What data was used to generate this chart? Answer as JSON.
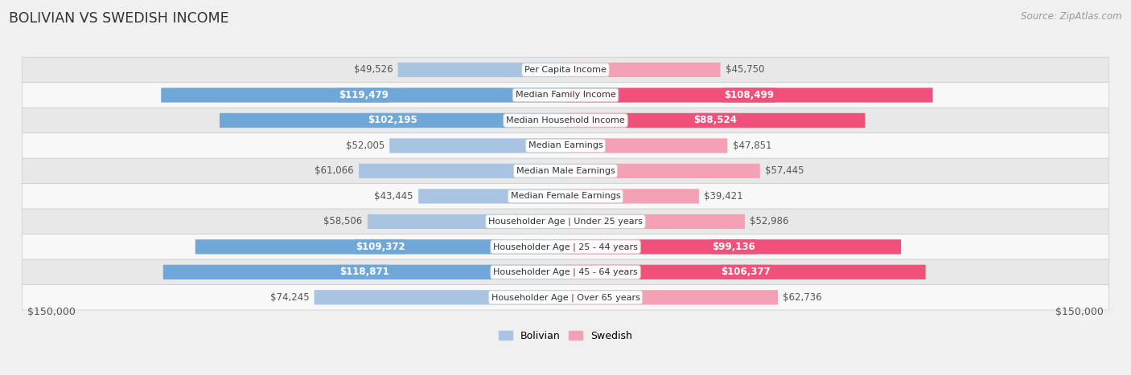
{
  "title": "BOLIVIAN VS SWEDISH INCOME",
  "source": "Source: ZipAtlas.com",
  "categories": [
    "Per Capita Income",
    "Median Family Income",
    "Median Household Income",
    "Median Earnings",
    "Median Male Earnings",
    "Median Female Earnings",
    "Householder Age | Under 25 years",
    "Householder Age | 25 - 44 years",
    "Householder Age | 45 - 64 years",
    "Householder Age | Over 65 years"
  ],
  "bolivian": [
    49526,
    119479,
    102195,
    52005,
    61066,
    43445,
    58506,
    109372,
    118871,
    74245
  ],
  "swedish": [
    45750,
    108499,
    88524,
    47851,
    57445,
    39421,
    52986,
    99136,
    106377,
    62736
  ],
  "max_val": 150000,
  "bolivian_light": "#a8c4e0",
  "bolivian_dark": "#6fa8d8",
  "swedish_light": "#f4a0b5",
  "swedish_dark": "#f0507a",
  "bg_color": "#f0f0f0",
  "row_light": "#f8f8f8",
  "row_dark": "#e8e8e8",
  "threshold": 80000,
  "x_label": "$150,000"
}
